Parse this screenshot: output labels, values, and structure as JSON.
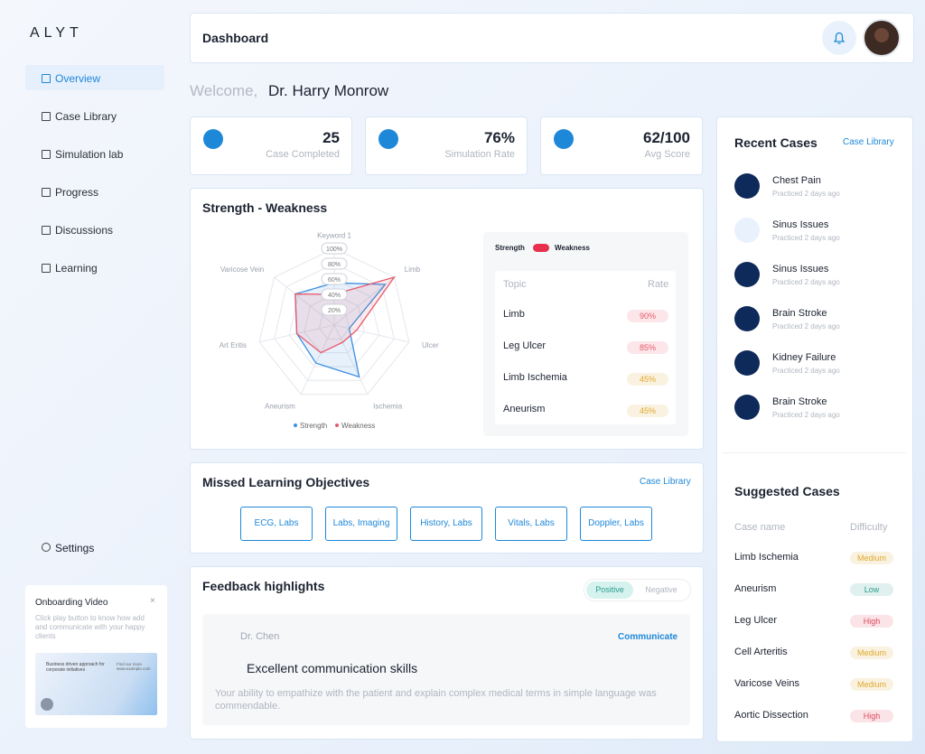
{
  "brand": "ALYT",
  "nav": [
    "Overview",
    "Case Library",
    "Simulation lab",
    "Progress",
    "Discussions",
    "Learning"
  ],
  "settings": "Settings",
  "onboarding": {
    "title": "Onboarding Video",
    "close": "×",
    "text": "Click play button to know how add and communicate with your happy clients",
    "video_caption": "Business driven approach for corporate initiatives",
    "video_link": "Find our more www.example.com"
  },
  "header": {
    "title": "Dashboard"
  },
  "welcome": {
    "greeting": "Welcome,",
    "name": "Dr. Harry Monrow"
  },
  "stats": [
    {
      "value": "25",
      "label": "Case Completed"
    },
    {
      "value": "76%",
      "label": "Simulation Rate"
    },
    {
      "value": "62/100",
      "label": "Avg Score"
    }
  ],
  "strength_weakness": {
    "title": "Strength - Weakness",
    "radar": {
      "type": "radar",
      "categories": [
        "Keyword 1",
        "Limb",
        "Ulcer",
        "Ischemia",
        "Aneurism",
        "Art Eritis",
        "Varicose Vein"
      ],
      "series": [
        {
          "name": "Strength",
          "color": "#3b8fe0",
          "values": [
            55,
            85,
            20,
            75,
            55,
            50,
            65
          ]
        },
        {
          "name": "Weakness",
          "color": "#e85a6e",
          "values": [
            40,
            100,
            30,
            25,
            40,
            50,
            65
          ]
        }
      ],
      "rlim": [
        0,
        100
      ],
      "rticks": [
        {
          "value": 100,
          "label": "100%"
        },
        {
          "value": 80,
          "label": "80%"
        },
        {
          "value": 60,
          "label": "60%"
        },
        {
          "value": 40,
          "label": "40%"
        },
        {
          "value": 20,
          "label": "20%"
        }
      ]
    },
    "toggle": [
      "Strength",
      "Weakness"
    ],
    "table": {
      "header": [
        "Topic",
        "Rate"
      ],
      "rows": [
        {
          "topic": "Limb",
          "rate": "90%",
          "color": "#e85a6e"
        },
        {
          "topic": "Leg Ulcer",
          "rate": "85%",
          "color": "#e85a6e"
        },
        {
          "topic": "Limb Ischemia",
          "rate": "45%",
          "color": "#e0a82e"
        },
        {
          "topic": "Aneurism",
          "rate": "45%",
          "color": "#e0a82e"
        }
      ]
    }
  },
  "missed": {
    "title": "Missed Learning Objectives",
    "link": "Case Library",
    "chips": [
      "ECG, Labs",
      "Labs, Imaging",
      "History, Labs",
      "Vitals, Labs",
      "Doppler, Labs"
    ]
  },
  "feedback": {
    "title": "Feedback highlights",
    "tabs": [
      "Positive",
      "Negative"
    ],
    "author": "Dr. Chen",
    "action": "Communicate",
    "quote": "Excellent communication skills",
    "text": "Your ability to empathize with the patient and explain complex medical terms in simple language was commendable."
  },
  "recent": {
    "title": "Recent Cases",
    "link": "Case Library",
    "items": [
      {
        "name": "Chest Pain",
        "time": "Practiced 2 days ago"
      },
      {
        "name": "Sinus Issues",
        "time": "Practiced 2 days ago"
      },
      {
        "name": "Sinus Issues",
        "time": "Practiced 2 days ago"
      },
      {
        "name": "Brain Stroke",
        "time": "Practiced 2 days ago"
      },
      {
        "name": "Kidney Failure",
        "time": "Practiced 2 days ago"
      },
      {
        "name": "Brain Stroke",
        "time": "Practiced 2 days ago"
      }
    ]
  },
  "suggested": {
    "title": "Suggested Cases",
    "header": [
      "Case name",
      "Difficulty"
    ],
    "rows": [
      {
        "name": "Limb Ischemia",
        "difficulty": "Medium",
        "color": "#e0a82e"
      },
      {
        "name": "Aneurism",
        "difficulty": "Low",
        "color": "#2a9d8f"
      },
      {
        "name": "Leg Ulcer",
        "difficulty": "High",
        "color": "#e04a5f"
      },
      {
        "name": "Cell Arteritis",
        "difficulty": "Medium",
        "color": "#e0a82e"
      },
      {
        "name": "Varicose Veins",
        "difficulty": "Medium",
        "color": "#e0a82e"
      },
      {
        "name": "Aortic Dissection",
        "difficulty": "High",
        "color": "#e04a5f"
      }
    ]
  }
}
